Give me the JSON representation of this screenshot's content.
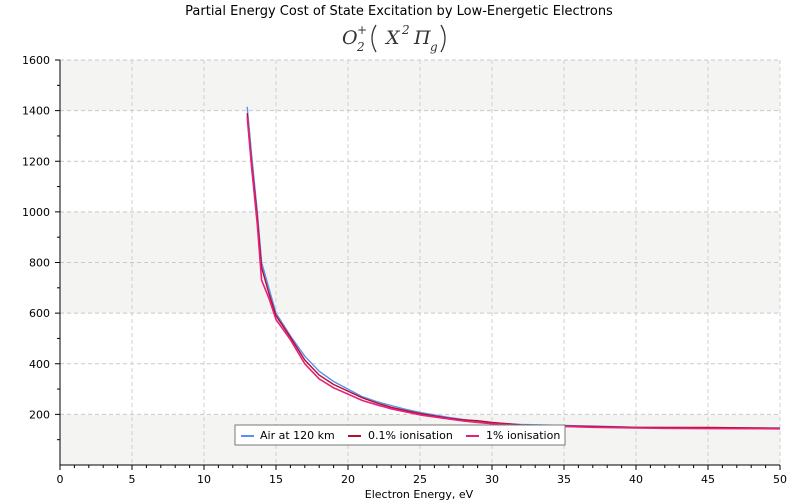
{
  "chart_data": {
    "type": "line",
    "title": "Partial Energy Cost of State Excitation by Low-Energetic Electrons",
    "subtitle": {
      "base": "O",
      "sub": "2",
      "sup": "+",
      "inner_base": "X",
      "inner_sup": "2",
      "inner_pi": "Π",
      "inner_sub": "g"
    },
    "xlabel": "Electron Energy, eV",
    "ylabel": "",
    "xlim": [
      0,
      50
    ],
    "ylim": [
      0,
      1600
    ],
    "xticks": [
      "0",
      "5",
      "10",
      "15",
      "20",
      "25",
      "30",
      "35",
      "40",
      "45",
      "50"
    ],
    "yticks": [
      "200",
      "400",
      "600",
      "800",
      "1000",
      "1200",
      "1400",
      "1600"
    ],
    "grid": true,
    "legend_position": "bottom-center",
    "series": [
      {
        "name": "Air at 120 km",
        "color": "#5b8ff0",
        "points": [
          [
            13.0,
            1415
          ],
          [
            13.3,
            1230
          ],
          [
            13.7,
            1000
          ],
          [
            14.0,
            800
          ],
          [
            14.5,
            700
          ],
          [
            15.0,
            600
          ],
          [
            16.0,
            510
          ],
          [
            17.0,
            430
          ],
          [
            18.0,
            370
          ],
          [
            19.0,
            330
          ],
          [
            20.0,
            300
          ],
          [
            21.0,
            270
          ],
          [
            22.0,
            250
          ],
          [
            23.0,
            235
          ],
          [
            24.0,
            220
          ],
          [
            25.0,
            208
          ],
          [
            26.0,
            198
          ],
          [
            27.0,
            188
          ],
          [
            28.0,
            180
          ],
          [
            29.0,
            173
          ],
          [
            30.0,
            167
          ],
          [
            32.0,
            160
          ],
          [
            35.0,
            156
          ],
          [
            38.0,
            152
          ],
          [
            40.0,
            149
          ],
          [
            45.0,
            147
          ],
          [
            50.0,
            146
          ]
        ]
      },
      {
        "name": "0.1% ionisation",
        "color": "#b0102a",
        "points": [
          [
            13.0,
            1390
          ],
          [
            13.3,
            1200
          ],
          [
            13.7,
            980
          ],
          [
            14.0,
            780
          ],
          [
            14.5,
            680
          ],
          [
            15.0,
            590
          ],
          [
            16.0,
            505
          ],
          [
            17.0,
            415
          ],
          [
            18.0,
            355
          ],
          [
            19.0,
            318
          ],
          [
            20.0,
            292
          ],
          [
            21.0,
            265
          ],
          [
            22.0,
            245
          ],
          [
            23.0,
            228
          ],
          [
            24.0,
            215
          ],
          [
            25.0,
            203
          ],
          [
            26.0,
            194
          ],
          [
            27.0,
            185
          ],
          [
            28.0,
            178
          ],
          [
            29.0,
            175
          ],
          [
            30.0,
            168
          ],
          [
            32.0,
            158
          ],
          [
            35.0,
            154
          ],
          [
            37.0,
            152
          ],
          [
            40.0,
            148
          ],
          [
            42.0,
            148
          ],
          [
            45.0,
            148
          ],
          [
            50.0,
            145
          ]
        ]
      },
      {
        "name": "1% ionisation",
        "color": "#e8207a",
        "points": [
          [
            13.0,
            1375
          ],
          [
            13.3,
            1180
          ],
          [
            13.7,
            950
          ],
          [
            14.0,
            730
          ],
          [
            14.5,
            660
          ],
          [
            15.0,
            575
          ],
          [
            16.0,
            495
          ],
          [
            17.0,
            400
          ],
          [
            18.0,
            340
          ],
          [
            19.0,
            305
          ],
          [
            20.0,
            280
          ],
          [
            21.0,
            255
          ],
          [
            22.0,
            238
          ],
          [
            23.0,
            222
          ],
          [
            24.0,
            210
          ],
          [
            25.0,
            198
          ],
          [
            26.0,
            190
          ],
          [
            27.0,
            182
          ],
          [
            28.0,
            174
          ],
          [
            29.0,
            168
          ],
          [
            30.0,
            163
          ],
          [
            32.0,
            156
          ],
          [
            35.0,
            152
          ],
          [
            37.0,
            149
          ],
          [
            40.0,
            146
          ],
          [
            42.0,
            145
          ],
          [
            45.0,
            144
          ],
          [
            50.0,
            143
          ]
        ]
      }
    ]
  }
}
